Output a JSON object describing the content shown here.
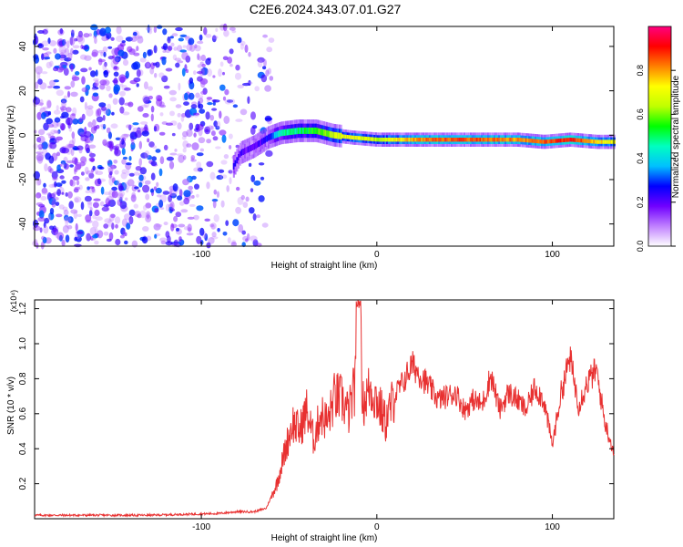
{
  "title": "C2E6.2024.343.07.01.G27",
  "chart_data": [
    {
      "type": "heatmap",
      "title": "C2E6.2024.343.07.01.G27",
      "xlabel": "Height of straight line (km)",
      "ylabel": "Frequency (Hz)",
      "xlim": [
        -195,
        135
      ],
      "ylim": [
        -50,
        49
      ],
      "xticks": [
        -100,
        0,
        100
      ],
      "yticks": [
        -40,
        -20,
        0,
        20,
        40
      ],
      "colorbar": {
        "label": "Normalized spectral amplitude",
        "range": [
          0,
          1
        ],
        "ticks": [
          0.0,
          0.2,
          0.4,
          0.6,
          0.8
        ],
        "colors": [
          "#ffffff",
          "#c080ff",
          "#7000ff",
          "#0000ff",
          "#00c0ff",
          "#00ffc0",
          "#00ff00",
          "#c0ff00",
          "#ffff00",
          "#ff8000",
          "#ff0000",
          "#ff0080"
        ]
      },
      "noise_region": {
        "x": [
          -195,
          -60
        ],
        "y": [
          -50,
          49
        ],
        "amplitude": [
          0.0,
          0.25
        ]
      },
      "signal_track": [
        {
          "x": -82,
          "y": -14,
          "amp": 0.25
        },
        {
          "x": -78,
          "y": -8,
          "amp": 0.2
        },
        {
          "x": -70,
          "y": -5,
          "amp": 0.2
        },
        {
          "x": -62,
          "y": -1,
          "amp": 0.25
        },
        {
          "x": -55,
          "y": 1,
          "amp": 0.45
        },
        {
          "x": -45,
          "y": 2,
          "amp": 0.5
        },
        {
          "x": -35,
          "y": 2,
          "amp": 0.55
        },
        {
          "x": -25,
          "y": 0,
          "amp": 0.65
        },
        {
          "x": -15,
          "y": -1,
          "amp": 0.7
        },
        {
          "x": 0,
          "y": -2,
          "amp": 0.65
        },
        {
          "x": 20,
          "y": -2,
          "amp": 0.8
        },
        {
          "x": 40,
          "y": -2,
          "amp": 0.85
        },
        {
          "x": 60,
          "y": -2,
          "amp": 0.85
        },
        {
          "x": 80,
          "y": -2,
          "amp": 0.8
        },
        {
          "x": 95,
          "y": -3,
          "amp": 0.85
        },
        {
          "x": 110,
          "y": -2,
          "amp": 0.9
        },
        {
          "x": 125,
          "y": -3,
          "amp": 0.75
        },
        {
          "x": 135,
          "y": -3,
          "amp": 0.7
        }
      ]
    },
    {
      "type": "line",
      "xlabel": "Height of straight line (km)",
      "ylabel": "SNR (10 * v/v)",
      "y_multiplier": "(x10⁴)",
      "xlim": [
        -195,
        135
      ],
      "ylim": [
        0,
        1.25
      ],
      "xticks": [
        -100,
        0,
        100
      ],
      "yticks": [
        0.2,
        0.4,
        0.6,
        0.8,
        1.0,
        1.2
      ],
      "color": "#e83030",
      "series": [
        {
          "x": [
            -195,
            -170,
            -150,
            -130,
            -110,
            -90,
            -80,
            -70,
            -63,
            -57,
            -52,
            -48,
            -44,
            -40,
            -36,
            -32,
            -28,
            -24,
            -20,
            -16,
            -12,
            -10,
            -8,
            -4,
            0,
            5,
            10,
            15,
            20,
            25,
            30,
            35,
            40,
            45,
            50,
            55,
            60,
            65,
            70,
            75,
            80,
            85,
            90,
            95,
            100,
            105,
            110,
            115,
            120,
            125,
            130,
            135
          ],
          "y": [
            0.02,
            0.02,
            0.02,
            0.02,
            0.025,
            0.03,
            0.04,
            0.04,
            0.06,
            0.2,
            0.4,
            0.55,
            0.5,
            0.62,
            0.45,
            0.6,
            0.55,
            0.7,
            0.68,
            0.6,
            0.78,
            1.25,
            0.65,
            0.75,
            0.68,
            0.55,
            0.7,
            0.78,
            0.88,
            0.82,
            0.75,
            0.68,
            0.7,
            0.72,
            0.62,
            0.68,
            0.65,
            0.82,
            0.62,
            0.72,
            0.68,
            0.62,
            0.75,
            0.68,
            0.42,
            0.72,
            0.92,
            0.65,
            0.78,
            0.85,
            0.55,
            0.38
          ]
        }
      ]
    }
  ]
}
